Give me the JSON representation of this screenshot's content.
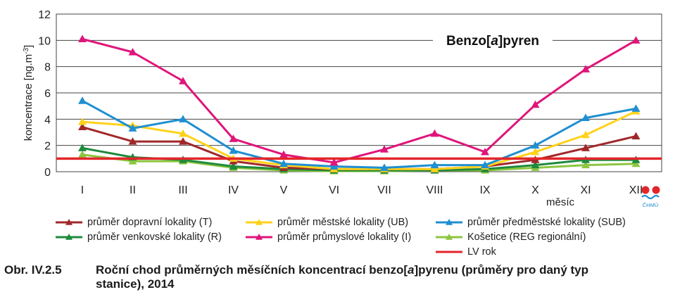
{
  "chart_data": {
    "type": "line",
    "title": "Benzo[a]pyren",
    "title_parts": {
      "pre": "Benzo[",
      "ital": "a",
      "post": "]pyren"
    },
    "xlabel": "měsíc",
    "ylabel_parts": {
      "base": "koncentrace [ng.m",
      "sup": "-3",
      "end": "]"
    },
    "categories": [
      "I",
      "II",
      "III",
      "IV",
      "V",
      "VI",
      "VII",
      "VIII",
      "IX",
      "X",
      "XI",
      "XII"
    ],
    "ylim": [
      0,
      12
    ],
    "yticks": [
      0,
      2,
      4,
      6,
      8,
      10,
      12
    ],
    "grid": true,
    "legend_position": "bottom",
    "series": [
      {
        "name": "průměr dopravní lokality (T)",
        "color": "#a0282a",
        "values": [
          3.4,
          2.3,
          2.3,
          0.8,
          0.3,
          0.2,
          0.2,
          0.2,
          0.4,
          0.9,
          1.8,
          2.7
        ]
      },
      {
        "name": "průměr městské lokality (UB)",
        "color": "#ffd21a",
        "values": [
          3.8,
          3.5,
          2.9,
          1.0,
          0.5,
          0.2,
          0.2,
          0.2,
          0.4,
          1.5,
          2.8,
          4.6
        ]
      },
      {
        "name": "průměr předměstské lokality (SUB)",
        "color": "#1f8fd0",
        "values": [
          5.4,
          3.3,
          4.0,
          1.6,
          0.6,
          0.4,
          0.3,
          0.5,
          0.5,
          2.0,
          4.1,
          4.8
        ]
      },
      {
        "name": "průměr venkovské lokality (R)",
        "color": "#1e8a3c",
        "values": [
          1.8,
          1.1,
          0.9,
          0.4,
          0.2,
          0.1,
          0.1,
          0.1,
          0.2,
          0.5,
          0.9,
          0.9
        ]
      },
      {
        "name": "průměr průmyslové lokality (I)",
        "color": "#e0157a",
        "values": [
          10.1,
          9.1,
          6.9,
          2.5,
          1.3,
          0.7,
          1.7,
          2.9,
          1.5,
          5.1,
          7.8,
          10.0
        ]
      },
      {
        "name": "Košetice (REG regionální)",
        "color": "#8cc63f",
        "values": [
          1.3,
          0.8,
          0.8,
          0.3,
          0.1,
          0.05,
          0.05,
          0.1,
          0.1,
          0.3,
          0.5,
          0.6
        ]
      }
    ],
    "limit_line": {
      "name": "LV rok",
      "value": 1.0,
      "color": "#e3262a"
    }
  },
  "logo": {
    "text": "ČHMÚ",
    "colors": [
      "#e3262a",
      "#1f8fd0"
    ]
  },
  "caption": {
    "number": "Obr. IV.2.5",
    "text_pre": "Roční chod průměrných měsíčních koncentrací benzo[",
    "text_ital": "a",
    "text_post": "]pyrenu (průměry pro daný typ",
    "line2": "stanice), 2014"
  }
}
